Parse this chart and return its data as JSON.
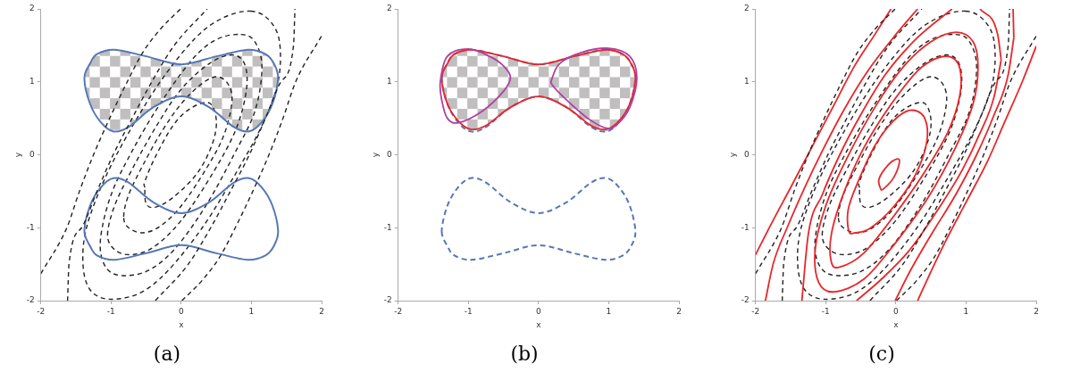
{
  "chart_data": [
    {
      "type": "line",
      "title": "(a)",
      "xlabel": "x",
      "ylabel": "y",
      "xlim": [
        -2,
        2
      ],
      "ylim": [
        -2,
        2
      ],
      "xticks": [
        -2,
        -1,
        0,
        1,
        2
      ],
      "yticks": [
        -2,
        -1,
        0,
        1,
        2
      ],
      "grid": false,
      "marker": "none",
      "series": [
        {
          "color": "#222222",
          "line_style": "dashed",
          "x": [
            -2,
            -1.63,
            -1.45,
            -1.25,
            -1.02,
            -0.77,
            -0.55,
            -0.3,
            -0.01
          ],
          "values": [
            -1.63,
            -1,
            -0.5,
            0,
            0.5,
            1,
            1.4,
            1.72,
            2
          ]
        },
        {
          "color": "#222222",
          "line_style": "dashed",
          "x": [
            -1.62,
            -1.6,
            -1.42,
            -1.2,
            -0.97,
            -0.7,
            -0.42,
            -0.1,
            0.37
          ],
          "values": [
            -2,
            -1.5,
            -1.0,
            -0.5,
            0,
            0.5,
            1.0,
            1.5,
            2
          ]
        },
        {
          "color": "#222222",
          "line_style": "dashed",
          "x": [
            -0.37,
            0.1,
            0.42,
            0.7,
            0.97,
            1.2,
            1.42,
            1.6,
            1.62
          ],
          "values": [
            -2,
            -1.5,
            -1,
            -0.5,
            0,
            0.5,
            1.0,
            1.5,
            2
          ]
        },
        {
          "color": "#222222",
          "line_style": "dashed",
          "x": [
            0.01,
            0.3,
            0.55,
            0.77,
            1.02,
            1.25,
            1.45,
            1.63,
            2
          ],
          "values": [
            -2,
            -1.72,
            -1.4,
            -1,
            -0.5,
            0,
            0.5,
            1,
            1.63
          ]
        }
      ]
    },
    {
      "type": "line",
      "title": "(b)",
      "xlabel": "x",
      "ylabel": "y",
      "xlim": [
        -2,
        2
      ],
      "ylim": [
        -2,
        2
      ],
      "xticks": [
        -2,
        -1,
        0,
        1,
        2
      ],
      "yticks": [
        -2,
        -1,
        0,
        1,
        2
      ],
      "grid": false
    },
    {
      "type": "line",
      "title": "(c)",
      "xlabel": "x",
      "ylabel": "y",
      "xlim": [
        -2,
        2
      ],
      "ylim": [
        -2,
        2
      ],
      "xticks": [
        -2,
        -1,
        0,
        1,
        2
      ],
      "yticks": [
        -2,
        -1,
        0,
        1,
        2
      ],
      "grid": false,
      "marker": "none",
      "series": [
        {
          "color": "#222222",
          "line_style": "dashed",
          "x": [
            -2,
            -1.63,
            -1.45,
            -1.25,
            -1.02,
            -0.77,
            -0.55,
            -0.3,
            -0.01
          ],
          "values": [
            -1.63,
            -1,
            -0.5,
            0,
            0.5,
            1,
            1.4,
            1.72,
            2
          ]
        },
        {
          "color": "#222222",
          "line_style": "dashed",
          "x": [
            -1.62,
            -1.6,
            -1.42,
            -1.2,
            -0.97,
            -0.7,
            -0.42,
            -0.1,
            0.37
          ],
          "values": [
            -2,
            -1.5,
            -1.0,
            -0.5,
            0,
            0.5,
            1.0,
            1.5,
            2
          ]
        },
        {
          "color": "#222222",
          "line_style": "dashed",
          "x": [
            -0.37,
            0.1,
            0.42,
            0.7,
            0.97,
            1.2,
            1.42,
            1.6,
            1.62
          ],
          "values": [
            -2,
            -1.5,
            -1,
            -0.5,
            0,
            0.5,
            1.0,
            1.5,
            2
          ]
        },
        {
          "color": "#222222",
          "line_style": "dashed",
          "x": [
            0.01,
            0.3,
            0.55,
            0.77,
            1.02,
            1.25,
            1.45,
            1.63,
            2
          ],
          "values": [
            -2,
            -1.72,
            -1.4,
            -1,
            -0.5,
            0,
            0.5,
            1,
            1.63
          ]
        },
        {
          "color": "#e8262a",
          "line_style": "solid",
          "x": [
            -2,
            -1.75,
            -1.5,
            -1.2,
            -0.9,
            -0.6,
            -0.3,
            -0.07
          ],
          "values": [
            -1.37,
            -0.9,
            -0.45,
            0.1,
            0.65,
            1.2,
            1.65,
            2
          ]
        },
        {
          "color": "#e8262a",
          "line_style": "solid",
          "x": [
            -1.86,
            -1.75,
            -1.55,
            -1.3,
            -1.05,
            -0.75,
            -0.4,
            0.0,
            0.31
          ],
          "values": [
            -2,
            -1.5,
            -1.0,
            -0.45,
            0.05,
            0.6,
            1.15,
            1.65,
            2
          ]
        },
        {
          "color": "#e8262a",
          "line_style": "solid",
          "x": [
            -1.34,
            -1.25,
            -1.05,
            -0.8,
            -0.5,
            -0.15,
            0.3,
            0.8
          ],
          "values": [
            -2,
            -1.1,
            -0.55,
            0,
            0.55,
            1.1,
            1.6,
            2
          ]
        },
        {
          "color": "#e8262a",
          "line_style": "solid",
          "x": [
            -0.56,
            -0.2,
            0.2,
            0.6,
            0.95,
            1.2,
            1.4,
            1.5
          ],
          "values": [
            -2,
            -1.7,
            -1.3,
            -0.75,
            -0.2,
            0.3,
            0.8,
            1.3
          ]
        },
        {
          "color": "#e8262a",
          "line_style": "solid",
          "x": [
            1.2,
            1.45,
            1.5
          ],
          "values": [
            2,
            1.65,
            1.3
          ]
        },
        {
          "color": "#e8262a",
          "line_style": "solid",
          "x": [
            -0.01,
            0.2,
            0.5,
            0.85,
            1.15,
            1.4,
            1.6,
            1.68
          ],
          "values": [
            -2,
            -1.6,
            -1.1,
            -0.55,
            0.0,
            0.55,
            1.1,
            1.6
          ]
        },
        {
          "color": "#e8262a",
          "line_style": "solid",
          "x": [
            1.67,
            1.68
          ],
          "values": [
            2,
            1.6
          ]
        },
        {
          "color": "#e8262a",
          "line_style": "solid",
          "x": [
            0.31,
            0.5,
            0.7,
            1.0,
            1.3,
            1.55,
            1.8,
            2
          ],
          "values": [
            -2,
            -1.6,
            -1.2,
            -0.65,
            -0.1,
            0.45,
            1.0,
            1.49
          ]
        }
      ]
    }
  ]
}
